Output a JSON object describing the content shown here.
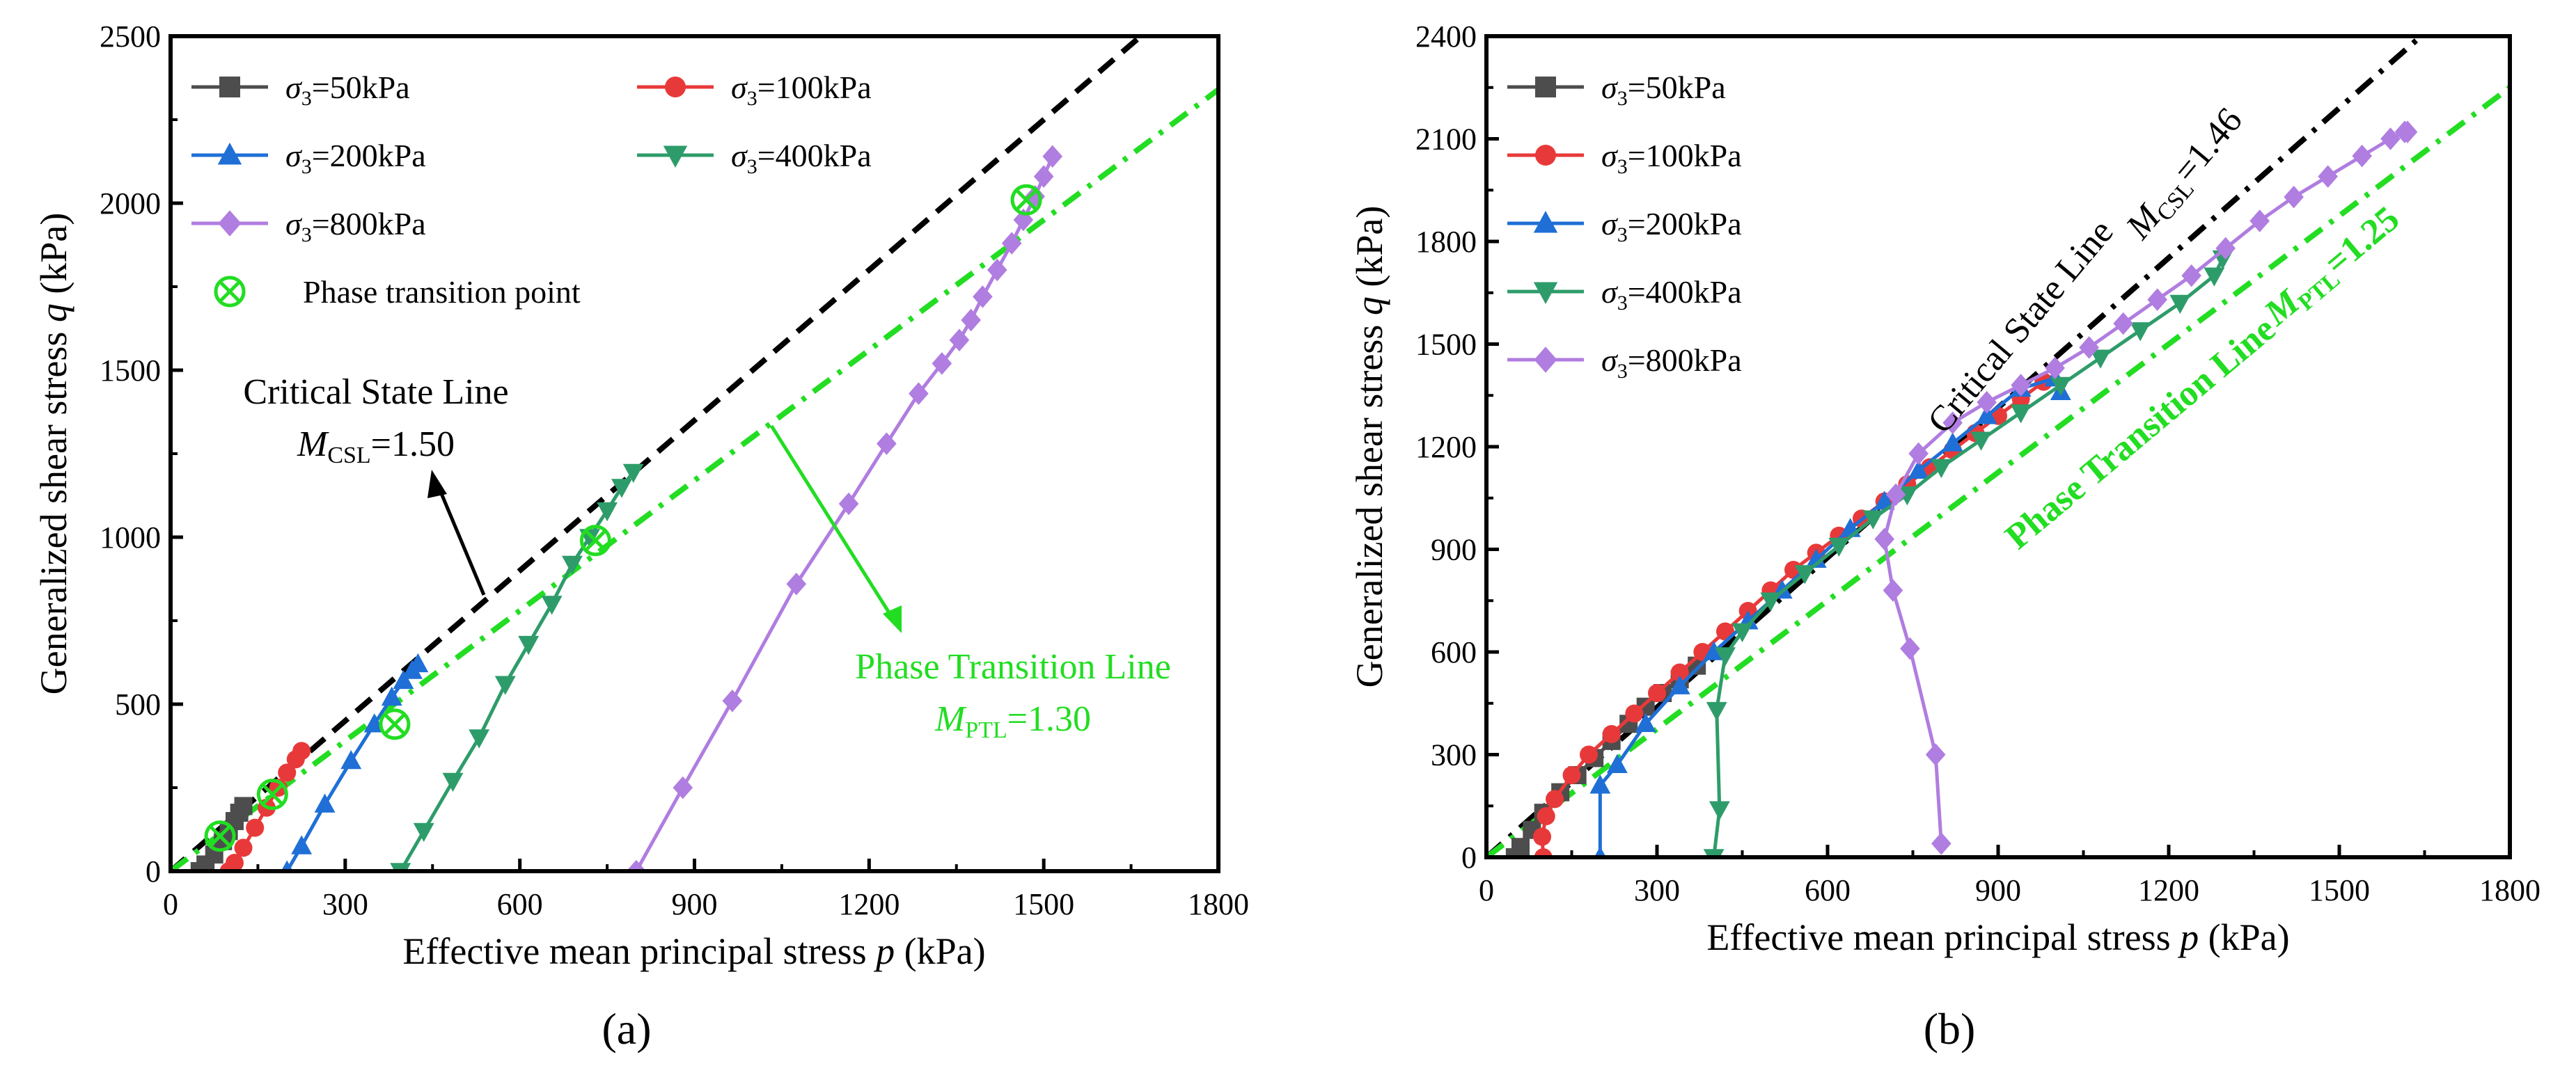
{
  "figure": {
    "panels": [
      "(a)",
      "(b)"
    ]
  },
  "chart_data": [
    {
      "type": "line",
      "panel_label": "(a)",
      "xlabel_text": "Effective mean principal stress",
      "xlabel_var": "p",
      "xlabel_unit": "(kPa)",
      "ylabel_text": "Generalized shear stress",
      "ylabel_var": "q",
      "ylabel_unit": "(kPa)",
      "xlim": [
        0,
        1800
      ],
      "ylim": [
        0,
        2500
      ],
      "xticks": [
        0,
        300,
        600,
        900,
        1200,
        1500,
        1800
      ],
      "yticks": [
        0,
        500,
        1000,
        1500,
        2000,
        2500
      ],
      "legend_position": "top-left",
      "legend_columns": 2,
      "series": [
        {
          "name": "σ3=50kPa",
          "sub": "3",
          "value_label": "=50kPa",
          "color": "#4d4d4d",
          "marker": "square",
          "x": [
            50,
            60,
            75,
            90,
            100,
            110,
            118,
            125
          ],
          "y": [
            0,
            20,
            50,
            90,
            120,
            150,
            175,
            195
          ]
        },
        {
          "name": "σ3=100kPa",
          "sub": "3",
          "value_label": "=100kPa",
          "color": "#e8393a",
          "marker": "circle",
          "x": [
            100,
            110,
            125,
            145,
            165,
            185,
            200,
            215,
            225
          ],
          "y": [
            0,
            25,
            70,
            130,
            190,
            250,
            295,
            335,
            360
          ]
        },
        {
          "name": "σ3=200kPa",
          "sub": "3",
          "value_label": "=200kPa",
          "color": "#1f6fd6",
          "marker": "triangle-up",
          "x": [
            200,
            225,
            265,
            310,
            350,
            380,
            400,
            415,
            425
          ],
          "y": [
            0,
            75,
            200,
            330,
            440,
            520,
            570,
            600,
            620
          ]
        },
        {
          "name": "σ3=400kPa",
          "sub": "3",
          "value_label": "=400kPa",
          "color": "#2e9c6a",
          "marker": "triangle-down",
          "x": [
            395,
            435,
            485,
            530,
            575,
            615,
            655,
            690,
            720,
            750,
            775,
            795
          ],
          "y": [
            0,
            120,
            270,
            400,
            560,
            680,
            800,
            920,
            1000,
            1080,
            1150,
            1195
          ]
        },
        {
          "name": "σ3=800kPa",
          "sub": "3",
          "value_label": "=800kPa",
          "color": "#b07de0",
          "marker": "diamond",
          "x": [
            800,
            880,
            965,
            1075,
            1165,
            1230,
            1285,
            1325,
            1355,
            1375,
            1395,
            1420,
            1445,
            1465,
            1485,
            1500,
            1515
          ],
          "y": [
            0,
            250,
            510,
            860,
            1100,
            1280,
            1430,
            1520,
            1590,
            1650,
            1720,
            1800,
            1880,
            1950,
            2020,
            2080,
            2140
          ]
        }
      ],
      "phase_transition_points": {
        "name": "Phase transition point",
        "color": "#22dd22",
        "x": [
          85,
          175,
          385,
          730,
          1470
        ],
        "y": [
          105,
          230,
          440,
          990,
          2010
        ]
      },
      "reference_lines": [
        {
          "name": "Critical State Line",
          "M_label_main": "M",
          "M_label_sub": "CSL",
          "M_value": "=1.50",
          "slope": 1.5,
          "color": "#000000",
          "style": "dashed"
        },
        {
          "name": "Phase Transition Line",
          "M_label_main": "M",
          "M_label_sub": "PTL",
          "M_value": "=1.30",
          "slope": 1.3,
          "color": "#22dd22",
          "style": "dash-dot"
        }
      ]
    },
    {
      "type": "line",
      "panel_label": "(b)",
      "xlabel_text": "Effective mean principal stress",
      "xlabel_var": "p",
      "xlabel_unit": "(kPa)",
      "ylabel_text": "Generalized shear stress",
      "ylabel_var": "q",
      "ylabel_unit": "(kPa)",
      "xlim": [
        0,
        1800
      ],
      "ylim": [
        0,
        2400
      ],
      "xticks": [
        0,
        300,
        600,
        900,
        1200,
        1500,
        1800
      ],
      "yticks": [
        0,
        300,
        600,
        900,
        1200,
        1500,
        1800,
        2100,
        2400
      ],
      "legend_position": "top-left",
      "legend_columns": 1,
      "series": [
        {
          "name": "σ3=50kPa",
          "sub": "3",
          "value_label": "=50kPa",
          "color": "#4d4d4d",
          "marker": "square",
          "x": [
            50,
            60,
            80,
            100,
            130,
            160,
            190,
            220,
            250,
            280,
            310,
            340,
            370
          ],
          "y": [
            0,
            30,
            80,
            130,
            190,
            240,
            290,
            340,
            390,
            440,
            480,
            520,
            560
          ]
        },
        {
          "name": "σ3=100kPa",
          "sub": "3",
          "value_label": "=100kPa",
          "color": "#e8393a",
          "marker": "circle",
          "x": [
            100,
            98,
            105,
            120,
            150,
            180,
            220,
            260,
            300,
            340,
            380,
            420,
            460,
            500,
            540,
            580,
            620,
            660,
            700,
            740,
            780,
            820,
            860,
            900,
            940,
            980
          ],
          "y": [
            0,
            60,
            120,
            170,
            240,
            300,
            360,
            420,
            480,
            540,
            600,
            660,
            720,
            780,
            840,
            890,
            940,
            990,
            1040,
            1090,
            1140,
            1190,
            1240,
            1290,
            1340,
            1390
          ]
        },
        {
          "name": "σ3=200kPa",
          "sub": "3",
          "value_label": "=200kPa",
          "color": "#1f6fd6",
          "marker": "triangle-up",
          "x": [
            200,
            200,
            230,
            280,
            340,
            400,
            460,
            520,
            580,
            640,
            700,
            760,
            820,
            880,
            940,
            1000,
            1010
          ],
          "y": [
            0,
            210,
            270,
            390,
            500,
            600,
            690,
            780,
            870,
            960,
            1040,
            1130,
            1210,
            1290,
            1370,
            1400,
            1360
          ]
        },
        {
          "name": "σ3=400kPa",
          "sub": "3",
          "value_label": "=400kPa",
          "color": "#2e9c6a",
          "marker": "triangle-down",
          "x": [
            400,
            410,
            405,
            420,
            450,
            500,
            560,
            620,
            680,
            740,
            800,
            870,
            940,
            1010,
            1080,
            1150,
            1220,
            1280,
            1295
          ],
          "y": [
            0,
            140,
            430,
            590,
            660,
            750,
            830,
            910,
            990,
            1060,
            1140,
            1220,
            1300,
            1380,
            1460,
            1540,
            1620,
            1700,
            1750
          ]
        },
        {
          "name": "σ3=800kPa",
          "sub": "3",
          "value_label": "=800kPa",
          "color": "#b07de0",
          "marker": "diamond",
          "x": [
            800,
            790,
            745,
            715,
            700,
            720,
            760,
            820,
            880,
            940,
            1000,
            1060,
            1120,
            1180,
            1240,
            1300,
            1360,
            1420,
            1480,
            1540,
            1590,
            1615,
            1620
          ],
          "y": [
            40,
            300,
            610,
            780,
            930,
            1060,
            1180,
            1270,
            1330,
            1380,
            1430,
            1490,
            1560,
            1630,
            1700,
            1780,
            1860,
            1930,
            1990,
            2050,
            2100,
            2120,
            2120
          ]
        }
      ],
      "reference_lines": [
        {
          "name": "Critical State Line",
          "M_label_main": "M",
          "M_label_sub": "CSL",
          "M_value": "=1.46",
          "slope": 1.46,
          "color": "#000000",
          "style": "dash-dot"
        },
        {
          "name": "Phase Transition Line",
          "M_label_main": "M",
          "M_label_sub": "PTL",
          "M_value": "=1.25",
          "slope": 1.25,
          "color": "#22dd22",
          "style": "dash-dot"
        }
      ]
    }
  ]
}
